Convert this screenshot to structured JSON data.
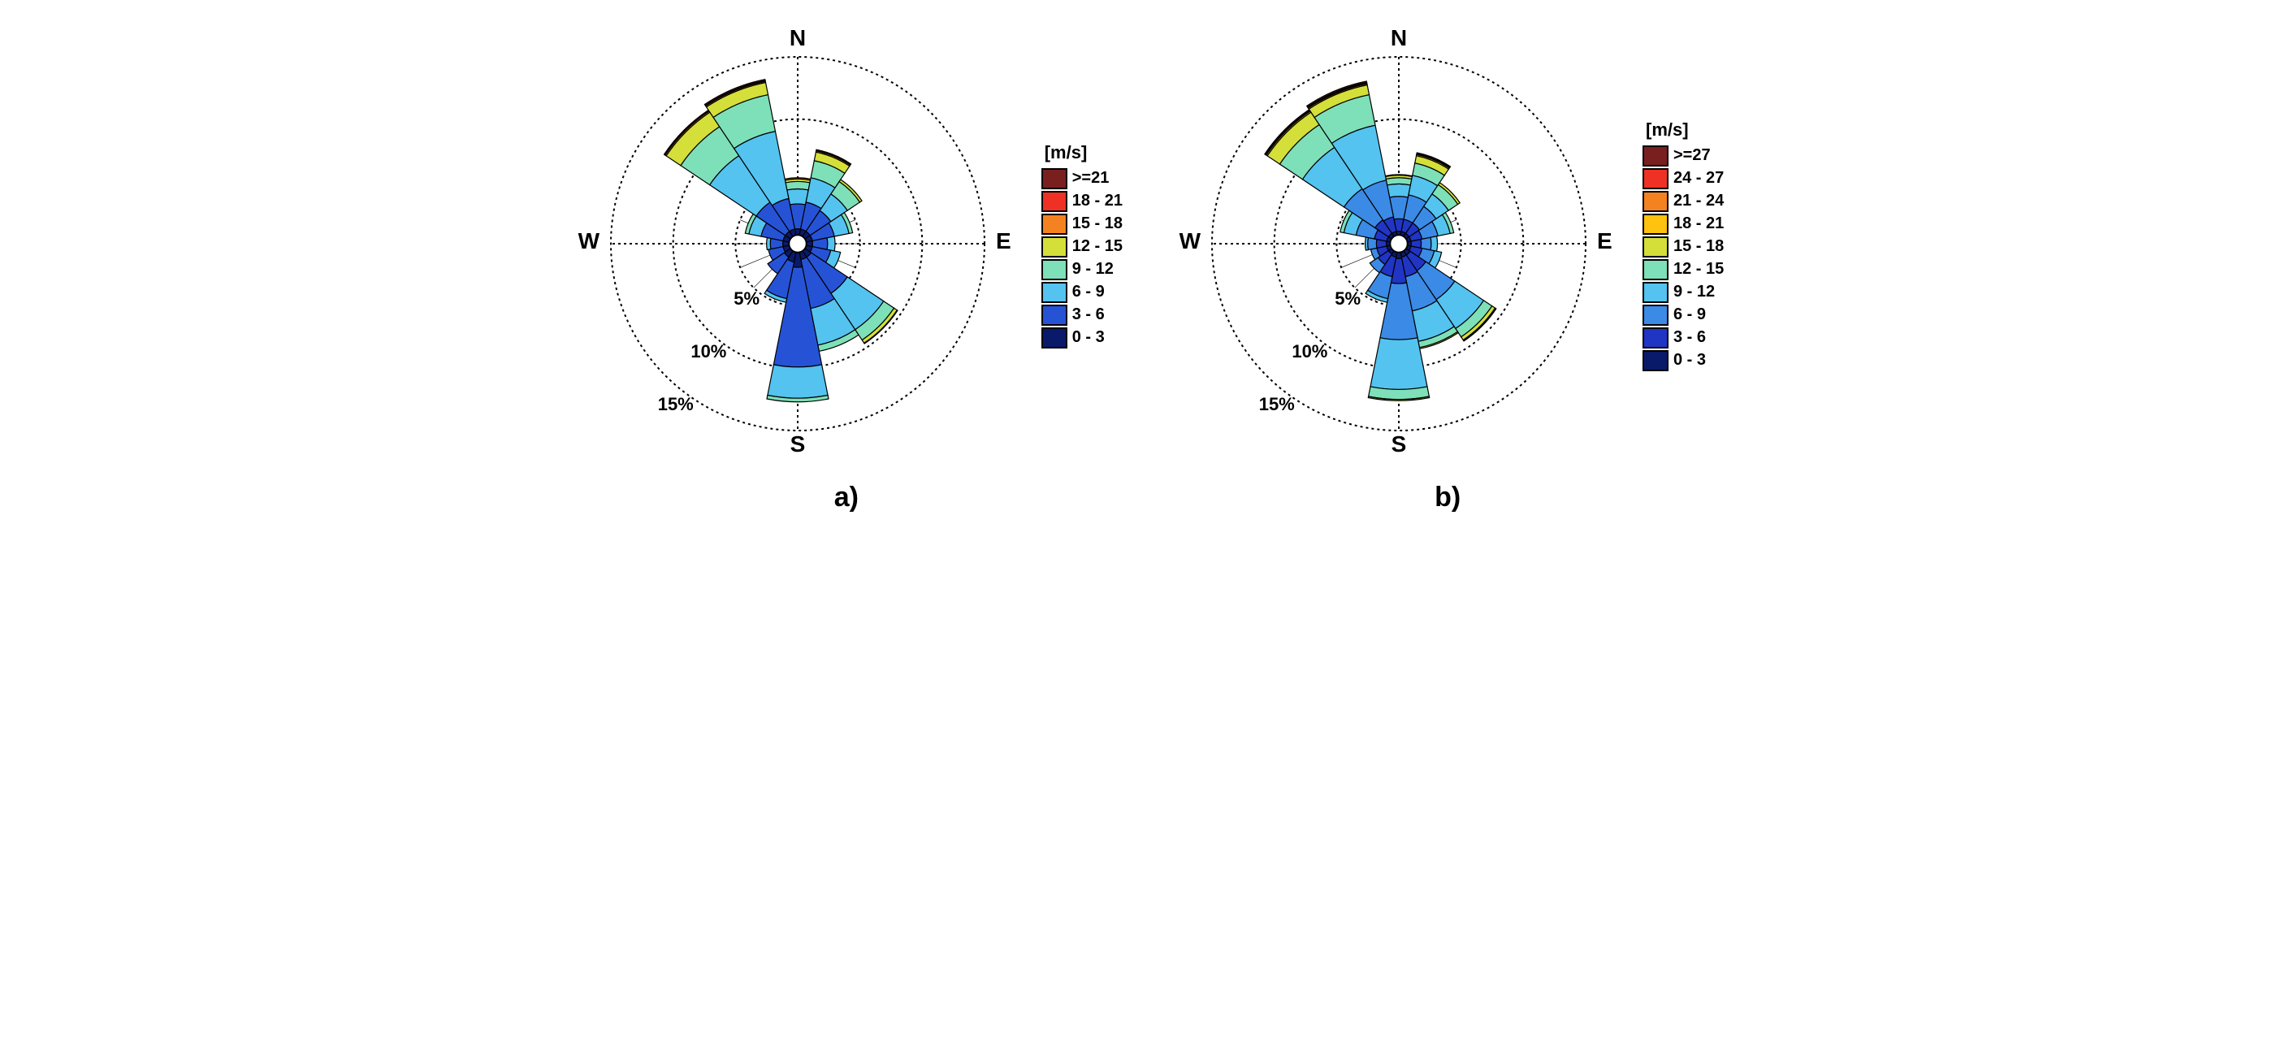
{
  "background_color": "#ffffff",
  "panels": [
    {
      "id": "a",
      "label": "a)",
      "compass": {
        "N": "N",
        "E": "E",
        "S": "S",
        "W": "W"
      },
      "rings": [
        {
          "pct": 5,
          "label": "5%"
        },
        {
          "pct": 10,
          "label": "10%"
        },
        {
          "pct": 15,
          "label": "15%"
        }
      ],
      "max_pct": 15,
      "ring_label_fontsize": 22,
      "compass_fontsize": 28,
      "panel_label_fontsize": 34,
      "sector_width_deg": 22.5,
      "ring_stroke": "#000000",
      "ring_dash": "3,4",
      "axis_stroke": "#000000",
      "axis_dash": "3,4",
      "sector_stroke": "#000000",
      "sector_stroke_width": 1.2,
      "center_hole_pct": 0.7,
      "legend": {
        "title": "[m/s]",
        "items": [
          {
            "label": ">=21",
            "color": "#7a1f1f"
          },
          {
            "label": "18 - 21",
            "color": "#ee3124"
          },
          {
            "label": "15 - 18",
            "color": "#f58220"
          },
          {
            "label": "12 - 15",
            "color": "#d4df3a"
          },
          {
            "label": "9 - 12",
            "color": "#7ee0b8"
          },
          {
            "label": "6 - 9",
            "color": "#54c3ef"
          },
          {
            "label": "3 - 6",
            "color": "#2653d6"
          },
          {
            "label": "0 - 3",
            "color": "#0a1a6a"
          }
        ]
      },
      "speed_colors": [
        "#0a1a6a",
        "#2653d6",
        "#54c3ef",
        "#7ee0b8",
        "#d4df3a",
        "#f58220",
        "#ee3124",
        "#7a1f1f"
      ],
      "sectors": [
        {
          "dir_deg": 0,
          "stacks": [
            0.5,
            2.0,
            1.2,
            0.6,
            0.2,
            0.1,
            0.0,
            0.0
          ]
        },
        {
          "dir_deg": 22.5,
          "stacks": [
            0.5,
            2.2,
            2.0,
            1.4,
            0.7,
            0.1,
            0.05,
            0.05
          ]
        },
        {
          "dir_deg": 45,
          "stacks": [
            0.5,
            2.0,
            1.6,
            1.2,
            0.2,
            0.0,
            0.0,
            0.0
          ]
        },
        {
          "dir_deg": 67.5,
          "stacks": [
            0.5,
            1.8,
            1.2,
            0.3,
            0.0,
            0.0,
            0.0,
            0.0
          ]
        },
        {
          "dir_deg": 90,
          "stacks": [
            0.5,
            1.2,
            0.6,
            0.0,
            0.0,
            0.0,
            0.0,
            0.0
          ]
        },
        {
          "dir_deg": 112.5,
          "stacks": [
            0.5,
            1.5,
            0.8,
            0.0,
            0.0,
            0.0,
            0.0,
            0.0
          ]
        },
        {
          "dir_deg": 135,
          "stacks": [
            0.6,
            3.5,
            3.5,
            1.0,
            0.3,
            0.05,
            0.0,
            0.0
          ]
        },
        {
          "dir_deg": 157.5,
          "stacks": [
            0.6,
            4.0,
            3.0,
            0.5,
            0.0,
            0.0,
            0.0,
            0.0
          ]
        },
        {
          "dir_deg": 180,
          "stacks": [
            1.2,
            8.0,
            2.5,
            0.3,
            0.0,
            0.0,
            0.0,
            0.0
          ]
        },
        {
          "dir_deg": 202.5,
          "stacks": [
            0.8,
            3.0,
            0.3,
            0.0,
            0.0,
            0.0,
            0.0,
            0.0
          ]
        },
        {
          "dir_deg": 225,
          "stacks": [
            0.6,
            1.6,
            0.0,
            0.0,
            0.0,
            0.0,
            0.0,
            0.0
          ]
        },
        {
          "dir_deg": 247.5,
          "stacks": [
            0.5,
            1.2,
            0.0,
            0.0,
            0.0,
            0.0,
            0.0,
            0.0
          ]
        },
        {
          "dir_deg": 270,
          "stacks": [
            0.5,
            1.0,
            0.3,
            0.0,
            0.0,
            0.0,
            0.0,
            0.0
          ]
        },
        {
          "dir_deg": 292.5,
          "stacks": [
            0.5,
            1.8,
            1.0,
            0.3,
            0.0,
            0.0,
            0.0,
            0.0
          ]
        },
        {
          "dir_deg": 315,
          "stacks": [
            0.5,
            2.8,
            4.5,
            2.8,
            1.4,
            0.1,
            0.05,
            0.05
          ]
        },
        {
          "dir_deg": 337.5,
          "stacks": [
            0.5,
            2.5,
            5.5,
            3.0,
            1.0,
            0.1,
            0.05,
            0.1
          ]
        }
      ]
    },
    {
      "id": "b",
      "label": "b)",
      "compass": {
        "N": "N",
        "E": "E",
        "S": "S",
        "W": "W"
      },
      "rings": [
        {
          "pct": 5,
          "label": "5%"
        },
        {
          "pct": 10,
          "label": "10%"
        },
        {
          "pct": 15,
          "label": "15%"
        }
      ],
      "max_pct": 15,
      "ring_label_fontsize": 22,
      "compass_fontsize": 28,
      "panel_label_fontsize": 34,
      "sector_width_deg": 22.5,
      "ring_stroke": "#000000",
      "ring_dash": "3,4",
      "axis_stroke": "#000000",
      "axis_dash": "3,4",
      "sector_stroke": "#000000",
      "sector_stroke_width": 1.2,
      "center_hole_pct": 0.7,
      "legend": {
        "title": "[m/s]",
        "items": [
          {
            "label": ">=27",
            "color": "#7a1f1f"
          },
          {
            "label": "24 - 27",
            "color": "#ee3124"
          },
          {
            "label": "21 - 24",
            "color": "#f58220"
          },
          {
            "label": "18 - 21",
            "color": "#ffc20e"
          },
          {
            "label": "15 - 18",
            "color": "#d4df3a"
          },
          {
            "label": "12 - 15",
            "color": "#7ee0b8"
          },
          {
            "label": "9 - 12",
            "color": "#54c3ef"
          },
          {
            "label": "6 - 9",
            "color": "#3b8ae6"
          },
          {
            "label": "3 - 6",
            "color": "#2035c4"
          },
          {
            "label": "0 - 3",
            "color": "#0a1a6a"
          }
        ]
      },
      "speed_colors": [
        "#0a1a6a",
        "#2035c4",
        "#3b8ae6",
        "#54c3ef",
        "#7ee0b8",
        "#d4df3a",
        "#ffc20e",
        "#f58220",
        "#ee3124",
        "#7a1f1f"
      ],
      "sectors": [
        {
          "dir_deg": 0,
          "stacks": [
            0.3,
            1.0,
            1.8,
            1.0,
            0.5,
            0.2,
            0.05,
            0.0,
            0.0,
            0.0
          ]
        },
        {
          "dir_deg": 22.5,
          "stacks": [
            0.3,
            1.0,
            2.0,
            1.6,
            1.0,
            0.6,
            0.1,
            0.05,
            0.05,
            0.05
          ]
        },
        {
          "dir_deg": 45,
          "stacks": [
            0.3,
            1.0,
            1.6,
            1.2,
            0.9,
            0.2,
            0.0,
            0.0,
            0.0,
            0.0
          ]
        },
        {
          "dir_deg": 67.5,
          "stacks": [
            0.3,
            0.9,
            1.3,
            1.0,
            0.3,
            0.0,
            0.0,
            0.0,
            0.0,
            0.0
          ]
        },
        {
          "dir_deg": 90,
          "stacks": [
            0.3,
            0.8,
            0.8,
            0.5,
            0.0,
            0.0,
            0.0,
            0.0,
            0.0,
            0.0
          ]
        },
        {
          "dir_deg": 112.5,
          "stacks": [
            0.3,
            0.9,
            1.0,
            0.6,
            0.0,
            0.0,
            0.0,
            0.0,
            0.0,
            0.0
          ]
        },
        {
          "dir_deg": 135,
          "stacks": [
            0.4,
            1.5,
            2.8,
            2.8,
            0.8,
            0.3,
            0.05,
            0.05,
            0.0,
            0.0
          ]
        },
        {
          "dir_deg": 157.5,
          "stacks": [
            0.4,
            1.6,
            2.8,
            2.5,
            0.5,
            0.1,
            0.0,
            0.0,
            0.0,
            0.0
          ]
        },
        {
          "dir_deg": 180,
          "stacks": [
            0.5,
            2.0,
            4.5,
            4.0,
            0.8,
            0.1,
            0.0,
            0.0,
            0.0,
            0.0
          ]
        },
        {
          "dir_deg": 202.5,
          "stacks": [
            0.4,
            1.6,
            1.8,
            0.3,
            0.0,
            0.0,
            0.0,
            0.0,
            0.0,
            0.0
          ]
        },
        {
          "dir_deg": 225,
          "stacks": [
            0.3,
            1.0,
            0.8,
            0.0,
            0.0,
            0.0,
            0.0,
            0.0,
            0.0,
            0.0
          ]
        },
        {
          "dir_deg": 247.5,
          "stacks": [
            0.3,
            0.8,
            0.5,
            0.0,
            0.0,
            0.0,
            0.0,
            0.0,
            0.0,
            0.0
          ]
        },
        {
          "dir_deg": 270,
          "stacks": [
            0.3,
            0.8,
            0.7,
            0.2,
            0.0,
            0.0,
            0.0,
            0.0,
            0.0,
            0.0
          ]
        },
        {
          "dir_deg": 292.5,
          "stacks": [
            0.3,
            1.0,
            1.5,
            1.0,
            0.3,
            0.0,
            0.0,
            0.0,
            0.0,
            0.0
          ]
        },
        {
          "dir_deg": 315,
          "stacks": [
            0.3,
            1.3,
            3.0,
            4.0,
            2.2,
            1.2,
            0.1,
            0.05,
            0.05,
            0.05
          ]
        },
        {
          "dir_deg": 337.5,
          "stacks": [
            0.3,
            1.2,
            3.0,
            4.5,
            2.5,
            0.8,
            0.1,
            0.05,
            0.05,
            0.1
          ]
        }
      ]
    }
  ]
}
